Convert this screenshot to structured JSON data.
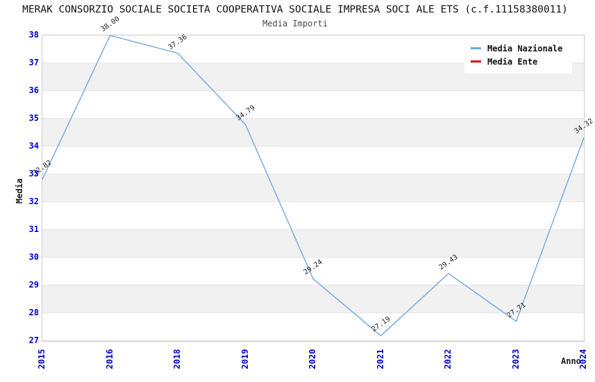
{
  "header": {
    "title": "MERAK CONSORZIO SOCIALE SOCIETA COOPERATIVA SOCIALE IMPRESA SOCI ALE ETS (c.f.11158380011)",
    "subtitle": "Media Importi"
  },
  "chart_data": {
    "type": "line",
    "title": "Media Importi",
    "xlabel": "Anno",
    "ylabel": "Media",
    "categories": [
      "2015",
      "2016",
      "2018",
      "2019",
      "2020",
      "2021",
      "2022",
      "2023",
      "2024"
    ],
    "series": [
      {
        "name": "Media Nazionale",
        "color": "#6FA8E0",
        "values": [
          32.82,
          38.0,
          37.36,
          34.79,
          29.24,
          27.19,
          29.43,
          27.71,
          34.32
        ]
      },
      {
        "name": "Media Ente",
        "color": "#E00000",
        "values": []
      }
    ],
    "ylim": [
      27,
      38
    ],
    "yticks": [
      38,
      37,
      36,
      35,
      34,
      33,
      32,
      31,
      30,
      29,
      28,
      27
    ],
    "grid": "horizontal-bands",
    "band_color": "#F1F1F1",
    "tick_label_color": "#0000CC",
    "legend_position": "top-right",
    "legend_entries": [
      "Media Nazionale",
      "Media Ente"
    ]
  }
}
